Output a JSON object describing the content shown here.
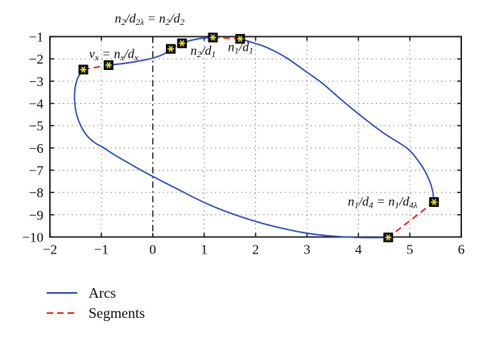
{
  "chart_data": {
    "type": "line",
    "description": "Arcs and segments diagram with marked points",
    "xlim": [
      -2,
      6
    ],
    "ylim": [
      -10,
      -1
    ],
    "grid": "dotted",
    "x_ticks": {
      "values": [
        -2,
        -1,
        0,
        1,
        2,
        3,
        4,
        5,
        6
      ],
      "labels": [
        "−2",
        "−1",
        "0",
        "1",
        "2",
        "3",
        "4",
        "5",
        "6"
      ]
    },
    "y_ticks": {
      "values": [
        -1,
        -2,
        -3,
        -4,
        -5,
        -6,
        -7,
        -8,
        -9,
        -10
      ],
      "labels": [
        "−1",
        "−2",
        "−3",
        "−4",
        "−5",
        "−6",
        "−7",
        "−8",
        "−9",
        "−10"
      ]
    },
    "zero_line": {
      "x": 0,
      "style": "dash-dot"
    },
    "series": [
      {
        "name": "Arcs",
        "style": "solid",
        "color": "#3452c5",
        "paths": [
          [
            [
              -1.35,
              -2.48
            ],
            [
              -1.45,
              -2.82
            ],
            [
              -1.51,
              -3.3
            ],
            [
              -1.52,
              -3.9
            ],
            [
              -1.48,
              -4.5
            ],
            [
              -1.4,
              -5.0
            ],
            [
              -1.28,
              -5.45
            ],
            [
              -1.12,
              -5.78
            ],
            [
              -0.98,
              -5.96
            ],
            [
              -0.75,
              -6.3
            ],
            [
              -0.5,
              -6.64
            ],
            [
              -0.25,
              -6.97
            ],
            [
              0.0,
              -7.28
            ],
            [
              0.5,
              -7.87
            ],
            [
              1.0,
              -8.45
            ],
            [
              1.5,
              -8.92
            ],
            [
              2.0,
              -9.3
            ],
            [
              2.5,
              -9.6
            ],
            [
              3.0,
              -9.83
            ],
            [
              3.5,
              -9.96
            ],
            [
              4.0,
              -10.02
            ],
            [
              4.3,
              -10.03
            ],
            [
              4.58,
              -10.02
            ]
          ],
          [
            [
              -0.86,
              -2.28
            ],
            [
              -0.62,
              -2.22
            ],
            [
              -0.35,
              -2.13
            ],
            [
              -0.1,
              -2.02
            ],
            [
              0.05,
              -1.93
            ],
            [
              0.18,
              -1.82
            ],
            [
              0.28,
              -1.69
            ],
            [
              0.35,
              -1.55
            ]
          ],
          [
            [
              0.57,
              -1.3
            ],
            [
              0.72,
              -1.18
            ],
            [
              0.88,
              -1.1
            ],
            [
              1.02,
              -1.06
            ],
            [
              1.17,
              -1.04
            ]
          ],
          [
            [
              1.7,
              -1.1
            ],
            [
              2.0,
              -1.31
            ],
            [
              2.25,
              -1.52
            ],
            [
              2.6,
              -1.95
            ],
            [
              3.0,
              -2.6
            ],
            [
              3.3,
              -3.1
            ],
            [
              3.7,
              -3.9
            ],
            [
              4.1,
              -4.65
            ],
            [
              4.5,
              -5.35
            ],
            [
              4.96,
              -6.04
            ],
            [
              5.2,
              -6.7
            ],
            [
              5.35,
              -7.3
            ],
            [
              5.44,
              -7.9
            ],
            [
              5.47,
              -8.43
            ]
          ]
        ]
      },
      {
        "name": "Segments",
        "style": "dashed",
        "color": "#e63323",
        "paths": [
          [
            [
              -1.35,
              -2.48
            ],
            [
              -0.86,
              -2.28
            ]
          ],
          [
            [
              0.35,
              -1.55
            ],
            [
              0.57,
              -1.3
            ]
          ],
          [
            [
              1.17,
              -1.04
            ],
            [
              1.7,
              -1.1
            ]
          ],
          [
            [
              5.47,
              -8.43
            ],
            [
              4.58,
              -10.02
            ]
          ]
        ]
      }
    ],
    "markers": {
      "shape": "black-square-with-yellow-asterisk",
      "square_color": "#111111",
      "star_color": "#e9e522",
      "points": [
        [
          -1.35,
          -2.48
        ],
        [
          -0.86,
          -2.28
        ],
        [
          0.35,
          -1.55
        ],
        [
          0.57,
          -1.3
        ],
        [
          1.17,
          -1.04
        ],
        [
          1.7,
          -1.1
        ],
        [
          5.47,
          -8.43
        ],
        [
          4.58,
          -10.02
        ]
      ]
    },
    "annotations": [
      {
        "text": "n~2~/d~2λ~ = n~2~/d~2~",
        "x": -0.06,
        "y": -0.22,
        "anchor": "middle"
      },
      {
        "text": "v~x~ = n~x~/d~x~",
        "x": -0.76,
        "y": -1.81,
        "anchor": "middle"
      },
      {
        "text": "n~2~/d~1~",
        "x": 0.98,
        "y": -1.67,
        "anchor": "middle"
      },
      {
        "text": "n~1~/d~1~",
        "x": 1.71,
        "y": -1.51,
        "anchor": "middle"
      },
      {
        "text": "n~1~/d~4~ = n~1~/d~4λ~",
        "x": 4.47,
        "y": -8.45,
        "anchor": "middle"
      }
    ],
    "legend": [
      {
        "label": "Arcs",
        "color": "#3452c5",
        "style": "solid"
      },
      {
        "label": "Segments",
        "color": "#e63323",
        "style": "dashed"
      }
    ],
    "colors": {
      "frame": "#222222",
      "grid": "#7a7a7a",
      "zero_line": "#333333",
      "text": "#111111",
      "background": "#ffffff"
    }
  }
}
